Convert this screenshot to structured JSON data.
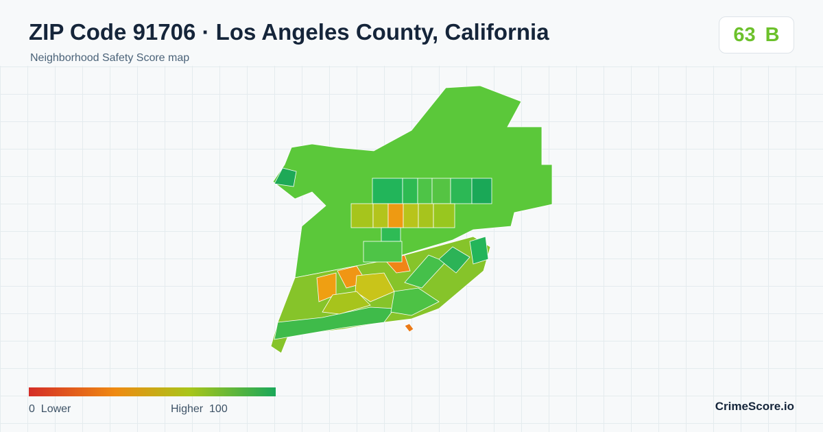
{
  "header": {
    "title": "ZIP Code 91706 · Los Angeles County, California",
    "subtitle": "Neighborhood Safety Score map"
  },
  "score": {
    "value": "63",
    "grade": "B"
  },
  "legend": {
    "min": "0",
    "min_label": "Lower",
    "max_label": "Higher",
    "max": "100"
  },
  "brand": "CrimeScore.io"
}
